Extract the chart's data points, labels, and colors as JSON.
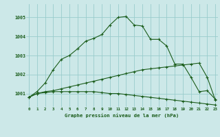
{
  "title": "Graphe pression niveau de la mer (hPa)",
  "bg_color": "#cce8e8",
  "grid_color": "#99cccc",
  "line_color": "#1a5c1a",
  "x_ticks": [
    0,
    1,
    2,
    3,
    4,
    5,
    6,
    7,
    8,
    9,
    10,
    11,
    12,
    13,
    14,
    15,
    16,
    17,
    18,
    19,
    20,
    21,
    22,
    23
  ],
  "y_ticks": [
    1001,
    1002,
    1003,
    1004,
    1005
  ],
  "ylim": [
    1000.3,
    1005.7
  ],
  "xlim": [
    -0.3,
    23.3
  ],
  "series1": [
    1000.8,
    1001.1,
    1001.55,
    1002.25,
    1002.8,
    1003.0,
    1003.35,
    1003.75,
    1003.9,
    1004.1,
    1004.6,
    1005.0,
    1005.05,
    1004.6,
    1004.55,
    1003.85,
    1003.85,
    1003.5,
    1002.55,
    1002.55,
    1001.85,
    1001.1,
    1001.15,
    1000.7
  ],
  "series2": [
    1000.8,
    1001.0,
    1001.1,
    1001.15,
    1001.25,
    1001.35,
    1001.45,
    1001.55,
    1001.65,
    1001.75,
    1001.85,
    1001.95,
    1002.05,
    1002.15,
    1002.25,
    1002.3,
    1002.35,
    1002.4,
    1002.45,
    1002.5,
    1002.55,
    1002.6,
    1001.85,
    1000.65
  ],
  "series3": [
    1000.8,
    1001.0,
    1001.05,
    1001.1,
    1001.1,
    1001.1,
    1001.1,
    1001.1,
    1001.1,
    1001.05,
    1001.0,
    1001.0,
    1000.95,
    1000.9,
    1000.85,
    1000.8,
    1000.75,
    1000.7,
    1000.65,
    1000.6,
    1000.55,
    1000.5,
    1000.45,
    1000.4
  ]
}
